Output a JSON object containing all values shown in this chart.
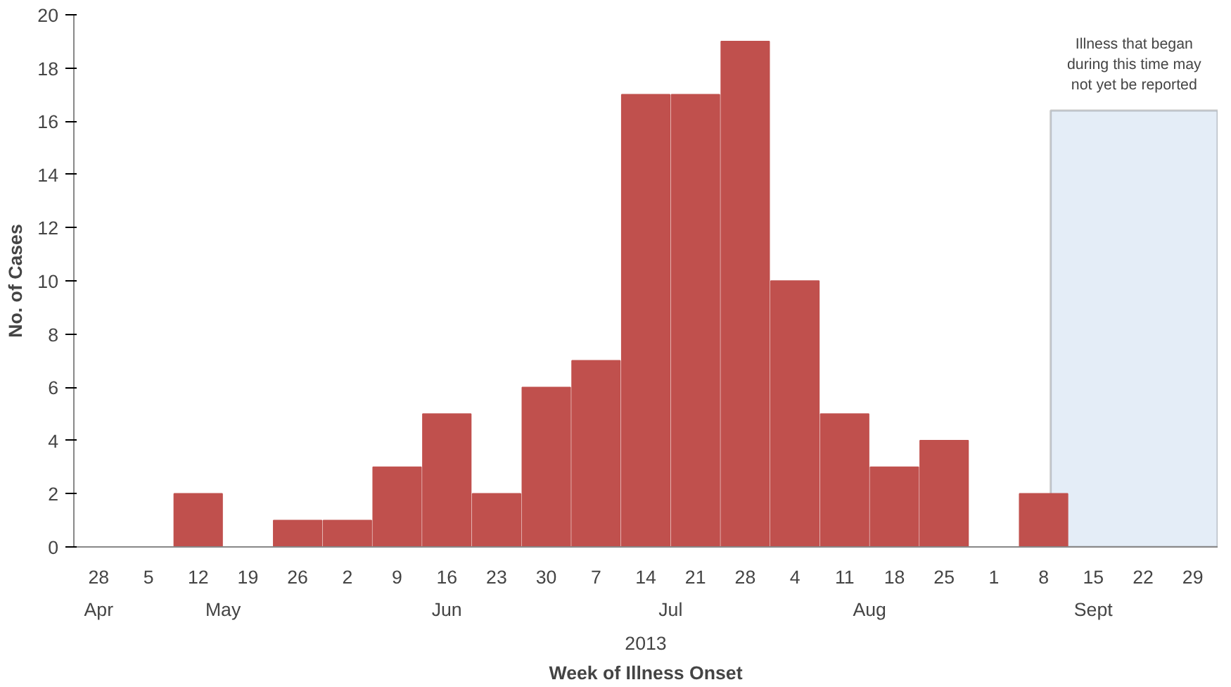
{
  "chart_data": {
    "type": "bar",
    "xlabel": "Week of Illness Onset",
    "ylabel": "No. of Cases",
    "x": [
      "2013-04-28",
      "2013-05-05",
      "2013-05-12",
      "2013-05-19",
      "2013-05-26",
      "2013-06-02",
      "2013-06-09",
      "2013-06-16",
      "2013-06-23",
      "2013-06-30",
      "2013-07-07",
      "2013-07-14",
      "2013-07-21",
      "2013-07-28",
      "2013-08-04",
      "2013-08-11",
      "2013-08-18",
      "2013-08-25",
      "2013-09-01",
      "2013-09-08",
      "2013-09-15",
      "2013-09-22",
      "2013-09-29"
    ],
    "values": [
      0,
      0,
      2,
      0,
      1,
      1,
      3,
      5,
      2,
      6,
      7,
      17,
      17,
      19,
      10,
      5,
      3,
      4,
      0,
      2,
      0,
      0,
      0
    ],
    "color": "#c0504d",
    "xlim": [
      "2013-04-24T12:00",
      "2013-10-02T12:00"
    ],
    "xticks": [
      {
        "value": "2013-04-28",
        "label": "28"
      },
      {
        "value": "2013-05-05",
        "label": "5"
      },
      {
        "value": "2013-05-12",
        "label": "12"
      },
      {
        "value": "2013-05-19",
        "label": "19"
      },
      {
        "value": "2013-05-26",
        "label": "26"
      },
      {
        "value": "2013-06-02",
        "label": "2"
      },
      {
        "value": "2013-06-09",
        "label": "9"
      },
      {
        "value": "2013-06-16",
        "label": "16"
      },
      {
        "value": "2013-06-23",
        "label": "23"
      },
      {
        "value": "2013-06-30",
        "label": "30"
      },
      {
        "value": "2013-07-07",
        "label": "7"
      },
      {
        "value": "2013-07-14",
        "label": "14"
      },
      {
        "value": "2013-07-21",
        "label": "21"
      },
      {
        "value": "2013-07-28",
        "label": "28"
      },
      {
        "value": "2013-08-04",
        "label": "4"
      },
      {
        "value": "2013-08-11",
        "label": "11"
      },
      {
        "value": "2013-08-18",
        "label": "18"
      },
      {
        "value": "2013-08-25",
        "label": "25"
      },
      {
        "value": "2013-09-01",
        "label": "1"
      },
      {
        "value": "2013-09-08",
        "label": "8"
      },
      {
        "value": "2013-09-15",
        "label": "15"
      },
      {
        "value": "2013-09-22",
        "label": "22"
      },
      {
        "value": "2013-09-29",
        "label": "29"
      }
    ],
    "ylim": [
      0,
      20
    ],
    "yticks": [
      0,
      2,
      4,
      6,
      8,
      10,
      12,
      14,
      16,
      18,
      20
    ],
    "grid": false,
    "bands": [
      {
        "axis": "x",
        "from": "2013-09-09",
        "to": "2013-10-02T12:00",
        "label": "Illness that began during this time may not yet be reported",
        "color": "#dde8f5"
      }
    ],
    "annotations": [
      "Apr",
      "May",
      "Jun",
      "Jul",
      "Aug",
      "Sept",
      "2013"
    ]
  }
}
